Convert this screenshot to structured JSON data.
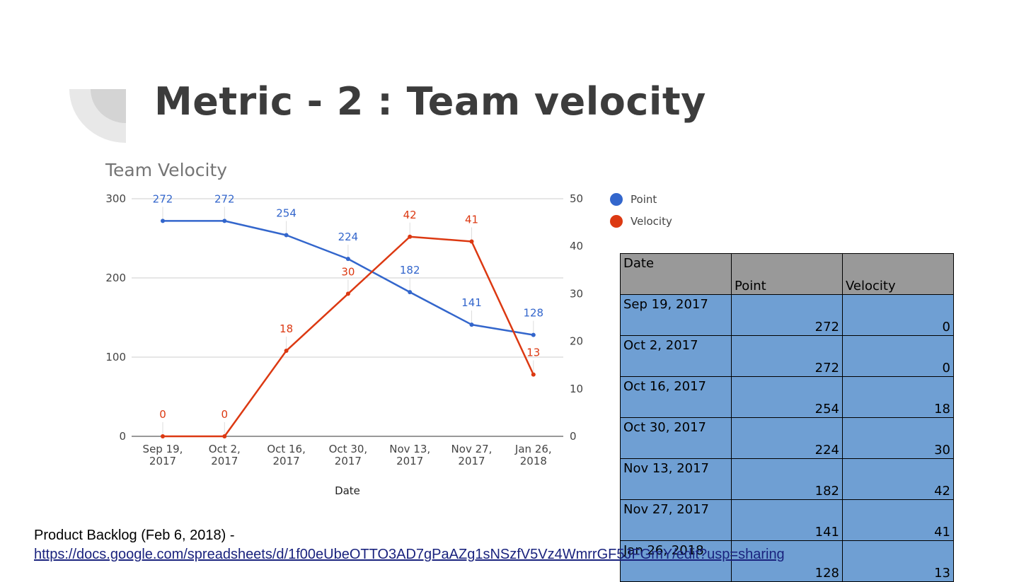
{
  "slide": {
    "title": "Metric - 2 : Team velocity"
  },
  "chart_data": {
    "type": "line",
    "title": "Team Velocity",
    "xlabel": "Date",
    "categories": [
      "Sep 19, 2017",
      "Oct 2, 2017",
      "Oct 16, 2017",
      "Oct 30, 2017",
      "Nov 13, 2017",
      "Nov 27, 2017",
      "Jan 26, 2018"
    ],
    "series": [
      {
        "name": "Point",
        "axis": "left",
        "color": "#3366cc",
        "values": [
          272,
          272,
          254,
          224,
          182,
          141,
          128
        ]
      },
      {
        "name": "Velocity",
        "axis": "right",
        "color": "#dc3912",
        "values": [
          0,
          0,
          18,
          30,
          42,
          41,
          13
        ]
      }
    ],
    "y_left": {
      "range": [
        0,
        300
      ],
      "ticks": [
        "0",
        "100",
        "200",
        "300"
      ]
    },
    "y_right": {
      "range": [
        0,
        50
      ],
      "ticks": [
        "0",
        "10",
        "20",
        "30",
        "40",
        "50"
      ]
    },
    "grid": true,
    "data_labels": true,
    "legend_position": "right"
  },
  "table": {
    "headers": [
      "Date",
      "Point",
      "Velocity"
    ],
    "rows": [
      [
        "Sep 19, 2017",
        "272",
        "0"
      ],
      [
        "Oct 2, 2017",
        "272",
        "0"
      ],
      [
        "Oct 16, 2017",
        "254",
        "18"
      ],
      [
        "Oct 30, 2017",
        "224",
        "30"
      ],
      [
        "Nov 13, 2017",
        "182",
        "42"
      ],
      [
        "Nov 27, 2017",
        "141",
        "41"
      ],
      [
        "Jan 26, 2018",
        "128",
        "13"
      ]
    ]
  },
  "footer": {
    "text": "Product Backlog (Feb 6, 2018) -",
    "link": "https://docs.google.com/spreadsheets/d/1f00eUbeOTTO3AD7gPaAZg1sNSzfV5Vz4WmrrGF5JFGmY/edit?usp=sharing"
  }
}
